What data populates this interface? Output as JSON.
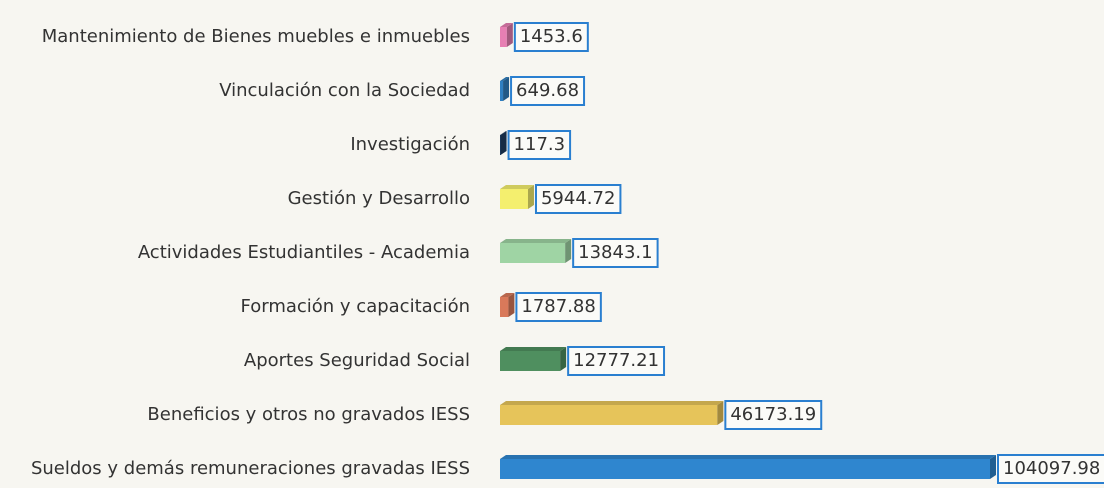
{
  "chart_data": {
    "type": "bar",
    "orientation": "horizontal",
    "categories": [
      "Mantenimiento de Bienes muebles e inmuebles",
      "Vinculación con la Sociedad",
      "Investigación",
      "Gestión y Desarrollo",
      "Actividades Estudiantiles - Academia",
      "Formación y capacitación",
      "Aportes Seguridad Social",
      "Beneficios y otros no gravados IESS",
      "Sueldos y demás remuneraciones gravadas IESS"
    ],
    "values": [
      1453.6,
      649.68,
      117.3,
      5944.72,
      13843.1,
      1787.88,
      12777.21,
      46173.19,
      104097.98
    ],
    "colors": [
      "#e77fb3",
      "#2f7fc1",
      "#1f3f66",
      "#f4ef6e",
      "#9fd4a4",
      "#d9795a",
      "#4f8f5f",
      "#e6c45a",
      "#2f86cf"
    ],
    "label_border": "#2a7fd0"
  }
}
